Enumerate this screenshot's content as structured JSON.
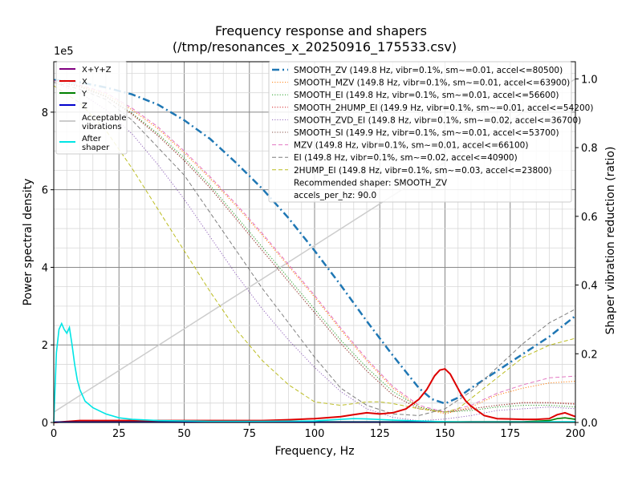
{
  "chart_data": {
    "type": "line",
    "title": "Frequency response and shapers",
    "subtitle": "(/tmp/resonances_x_20250916_175533.csv)",
    "xlabel": "Frequency, Hz",
    "ylabel": "Power spectral density",
    "y2label": "Shaper vibration reduction (ratio)",
    "y_offset_text": "1e5",
    "xlim": [
      0,
      200
    ],
    "ylim": [
      0,
      9.3
    ],
    "y2lim": [
      0,
      1.05
    ],
    "x_ticks": [
      "0",
      "25",
      "50",
      "75",
      "100",
      "125",
      "150",
      "175",
      "200"
    ],
    "y_ticks": [
      "0",
      "2",
      "4",
      "6",
      "8"
    ],
    "y2_ticks": [
      "0.0",
      "0.2",
      "0.4",
      "0.6",
      "0.8",
      "1.0"
    ],
    "grid": true,
    "colors": {
      "xyz": "#800080",
      "x": "#dd0000",
      "y": "#008000",
      "z": "#0000cc",
      "acceptable": "#cccccc",
      "after": "#00e5e5",
      "smooth_zv": "#1f77b4",
      "smooth_mzv": "#ff7f0e",
      "smooth_ei": "#2ca02c",
      "smooth_2hump": "#d62728",
      "smooth_zvd": "#9467bd",
      "smooth_si": "#8c564b",
      "mzv": "#e377c2",
      "ei": "#7f7f7f",
      "hump2": "#bcbd22"
    },
    "psd_legend": [
      "X+Y+Z",
      "X",
      "Y",
      "Z",
      "Acceptable\nvibrations",
      "After\nshaper"
    ],
    "shaper_legend": [
      "SMOOTH_ZV (149.8 Hz, vibr=0.1%, sm~=0.01, accel<=80500)",
      "SMOOTH_MZV (149.8 Hz, vibr=0.1%, sm~=0.01, accel<=63900)",
      "SMOOTH_EI (149.8 Hz, vibr=0.1%, sm~=0.01, accel<=56600)",
      "SMOOTH_2HUMP_EI (149.9 Hz, vibr=0.1%, sm~=0.01, accel<=54200)",
      "SMOOTH_ZVD_EI (149.8 Hz, vibr=0.1%, sm~=0.02, accel<=36700)",
      "SMOOTH_SI (149.9 Hz, vibr=0.1%, sm~=0.01, accel<=53700)",
      "MZV (149.8 Hz, vibr=0.1%, sm~=0.01, accel<=66100)",
      "EI (149.8 Hz, vibr=0.1%, sm~=0.02, accel<=40900)",
      "2HUMP_EI (149.8 Hz, vibr=0.1%, sm~=0.03, accel<=23800)",
      "Recommended shaper: SMOOTH_ZV",
      "accels_per_hz: 90.0"
    ],
    "psd_series": [
      {
        "key": "x",
        "x": [
          0,
          10,
          20,
          40,
          60,
          80,
          90,
          100,
          110,
          115,
          120,
          125,
          130,
          135,
          140,
          143,
          146,
          148,
          150,
          152,
          154,
          156,
          158,
          160,
          165,
          170,
          180,
          185,
          190,
          193,
          196,
          200
        ],
        "y": [
          0,
          0.05,
          0.05,
          0.05,
          0.05,
          0.05,
          0.07,
          0.1,
          0.15,
          0.2,
          0.25,
          0.22,
          0.25,
          0.35,
          0.6,
          0.85,
          1.2,
          1.35,
          1.38,
          1.25,
          1.0,
          0.75,
          0.55,
          0.42,
          0.18,
          0.1,
          0.08,
          0.08,
          0.1,
          0.2,
          0.25,
          0.15
        ]
      },
      {
        "key": "y",
        "x": [
          0,
          180,
          190,
          193,
          196,
          200
        ],
        "y": [
          0.01,
          0.02,
          0.05,
          0.1,
          0.12,
          0.08
        ]
      },
      {
        "key": "z",
        "x": [
          0,
          200
        ],
        "y": [
          0.01,
          0.01
        ]
      },
      {
        "key": "after",
        "x": [
          0,
          1,
          2,
          3,
          4,
          5,
          6,
          7,
          8,
          9,
          10,
          12,
          15,
          20,
          25,
          30,
          40,
          50,
          60,
          80,
          100,
          110,
          115,
          120,
          130,
          140,
          150,
          160,
          170,
          180,
          190,
          200
        ],
        "y": [
          0,
          1.8,
          2.4,
          2.55,
          2.4,
          2.3,
          2.45,
          2.0,
          1.5,
          1.1,
          0.85,
          0.55,
          0.38,
          0.22,
          0.12,
          0.08,
          0.05,
          0.04,
          0.03,
          0.03,
          0.04,
          0.08,
          0.1,
          0.09,
          0.06,
          0.04,
          0.02,
          0.01,
          0.01,
          0.01,
          0.02,
          0.02
        ]
      }
    ],
    "acceptable": {
      "x": [
        0,
        200
      ],
      "y2": [
        0.03,
        1.0
      ]
    },
    "shaper_series": [
      {
        "key": "smooth_zv",
        "style": "dashdot",
        "width": 2.5,
        "x": [
          0,
          10,
          20,
          30,
          40,
          50,
          60,
          70,
          80,
          90,
          100,
          110,
          120,
          130,
          140,
          145,
          150,
          155,
          160,
          170,
          180,
          190,
          200
        ],
        "y2": [
          0.997,
          0.99,
          0.975,
          0.955,
          0.925,
          0.88,
          0.825,
          0.755,
          0.68,
          0.595,
          0.5,
          0.4,
          0.295,
          0.195,
          0.1,
          0.068,
          0.055,
          0.072,
          0.1,
          0.15,
          0.2,
          0.25,
          0.31
        ]
      },
      {
        "key": "smooth_mzv",
        "style": "dotted",
        "width": 1,
        "x": [
          0,
          10,
          20,
          30,
          40,
          50,
          60,
          70,
          80,
          90,
          100,
          110,
          120,
          130,
          140,
          150,
          160,
          170,
          180,
          190,
          200
        ],
        "y2": [
          0.995,
          0.98,
          0.955,
          0.91,
          0.855,
          0.785,
          0.71,
          0.63,
          0.545,
          0.455,
          0.365,
          0.27,
          0.18,
          0.1,
          0.045,
          0.025,
          0.045,
          0.08,
          0.1,
          0.115,
          0.12
        ]
      },
      {
        "key": "smooth_ei",
        "style": "dotted",
        "width": 1,
        "x": [
          0,
          10,
          20,
          30,
          40,
          50,
          60,
          70,
          80,
          90,
          100,
          110,
          120,
          130,
          140,
          150,
          160,
          170,
          180,
          190,
          200
        ],
        "y2": [
          0.995,
          0.978,
          0.95,
          0.9,
          0.84,
          0.77,
          0.69,
          0.6,
          0.51,
          0.42,
          0.33,
          0.24,
          0.16,
          0.09,
          0.045,
          0.03,
          0.035,
          0.045,
          0.05,
          0.05,
          0.045
        ]
      },
      {
        "key": "smooth_2hump",
        "style": "dotted",
        "width": 1,
        "x": [
          0,
          10,
          20,
          30,
          40,
          50,
          60,
          70,
          80,
          90,
          100,
          110,
          120,
          130,
          140,
          150,
          160,
          170,
          180,
          190,
          200
        ],
        "y2": [
          0.995,
          0.977,
          0.948,
          0.898,
          0.835,
          0.763,
          0.683,
          0.592,
          0.5,
          0.41,
          0.32,
          0.23,
          0.15,
          0.08,
          0.04,
          0.03,
          0.04,
          0.05,
          0.058,
          0.058,
          0.055
        ]
      },
      {
        "key": "smooth_zvd",
        "style": "dotted",
        "width": 1,
        "x": [
          0,
          10,
          20,
          30,
          40,
          50,
          60,
          70,
          80,
          90,
          100,
          110,
          120,
          130,
          140,
          150,
          160,
          170,
          180,
          190,
          200
        ],
        "y2": [
          0.99,
          0.96,
          0.91,
          0.84,
          0.75,
          0.65,
          0.54,
          0.43,
          0.33,
          0.24,
          0.16,
          0.09,
          0.04,
          0.015,
          0.005,
          0.01,
          0.02,
          0.035,
          0.04,
          0.045,
          0.04
        ]
      },
      {
        "key": "smooth_si",
        "style": "dotted",
        "width": 1,
        "x": [
          0,
          10,
          20,
          30,
          40,
          50,
          60,
          70,
          80,
          90,
          100,
          110,
          120,
          130,
          140,
          150,
          160,
          170,
          180,
          190,
          200
        ],
        "y2": [
          0.995,
          0.977,
          0.948,
          0.897,
          0.834,
          0.762,
          0.682,
          0.591,
          0.5,
          0.41,
          0.32,
          0.23,
          0.15,
          0.08,
          0.04,
          0.03,
          0.04,
          0.05,
          0.057,
          0.057,
          0.053
        ]
      },
      {
        "key": "mzv",
        "style": "dashed",
        "width": 1,
        "x": [
          0,
          10,
          20,
          30,
          40,
          50,
          60,
          70,
          80,
          90,
          100,
          110,
          120,
          130,
          140,
          150,
          160,
          170,
          180,
          190,
          200
        ],
        "y2": [
          0.995,
          0.982,
          0.96,
          0.915,
          0.86,
          0.79,
          0.715,
          0.635,
          0.55,
          0.46,
          0.37,
          0.275,
          0.185,
          0.105,
          0.05,
          0.03,
          0.05,
          0.085,
          0.11,
          0.13,
          0.135
        ]
      },
      {
        "key": "ei",
        "style": "dashed",
        "width": 1,
        "x": [
          0,
          10,
          20,
          30,
          40,
          50,
          60,
          70,
          80,
          90,
          100,
          110,
          120,
          130,
          140,
          150,
          160,
          170,
          180,
          190,
          200
        ],
        "y2": [
          0.99,
          0.97,
          0.94,
          0.88,
          0.8,
          0.72,
          0.61,
          0.5,
          0.39,
          0.29,
          0.19,
          0.1,
          0.05,
          0.025,
          0.02,
          0.04,
          0.09,
          0.16,
          0.23,
          0.29,
          0.33
        ]
      },
      {
        "key": "hump2",
        "style": "dashed",
        "width": 1,
        "x": [
          0,
          10,
          20,
          30,
          40,
          50,
          60,
          70,
          80,
          90,
          100,
          110,
          120,
          125,
          130,
          140,
          150,
          155,
          160,
          170,
          180,
          190,
          200
        ],
        "y2": [
          0.98,
          0.93,
          0.85,
          0.74,
          0.62,
          0.5,
          0.38,
          0.27,
          0.18,
          0.11,
          0.06,
          0.05,
          0.06,
          0.06,
          0.055,
          0.04,
          0.03,
          0.04,
          0.07,
          0.13,
          0.19,
          0.225,
          0.245
        ]
      }
    ]
  }
}
